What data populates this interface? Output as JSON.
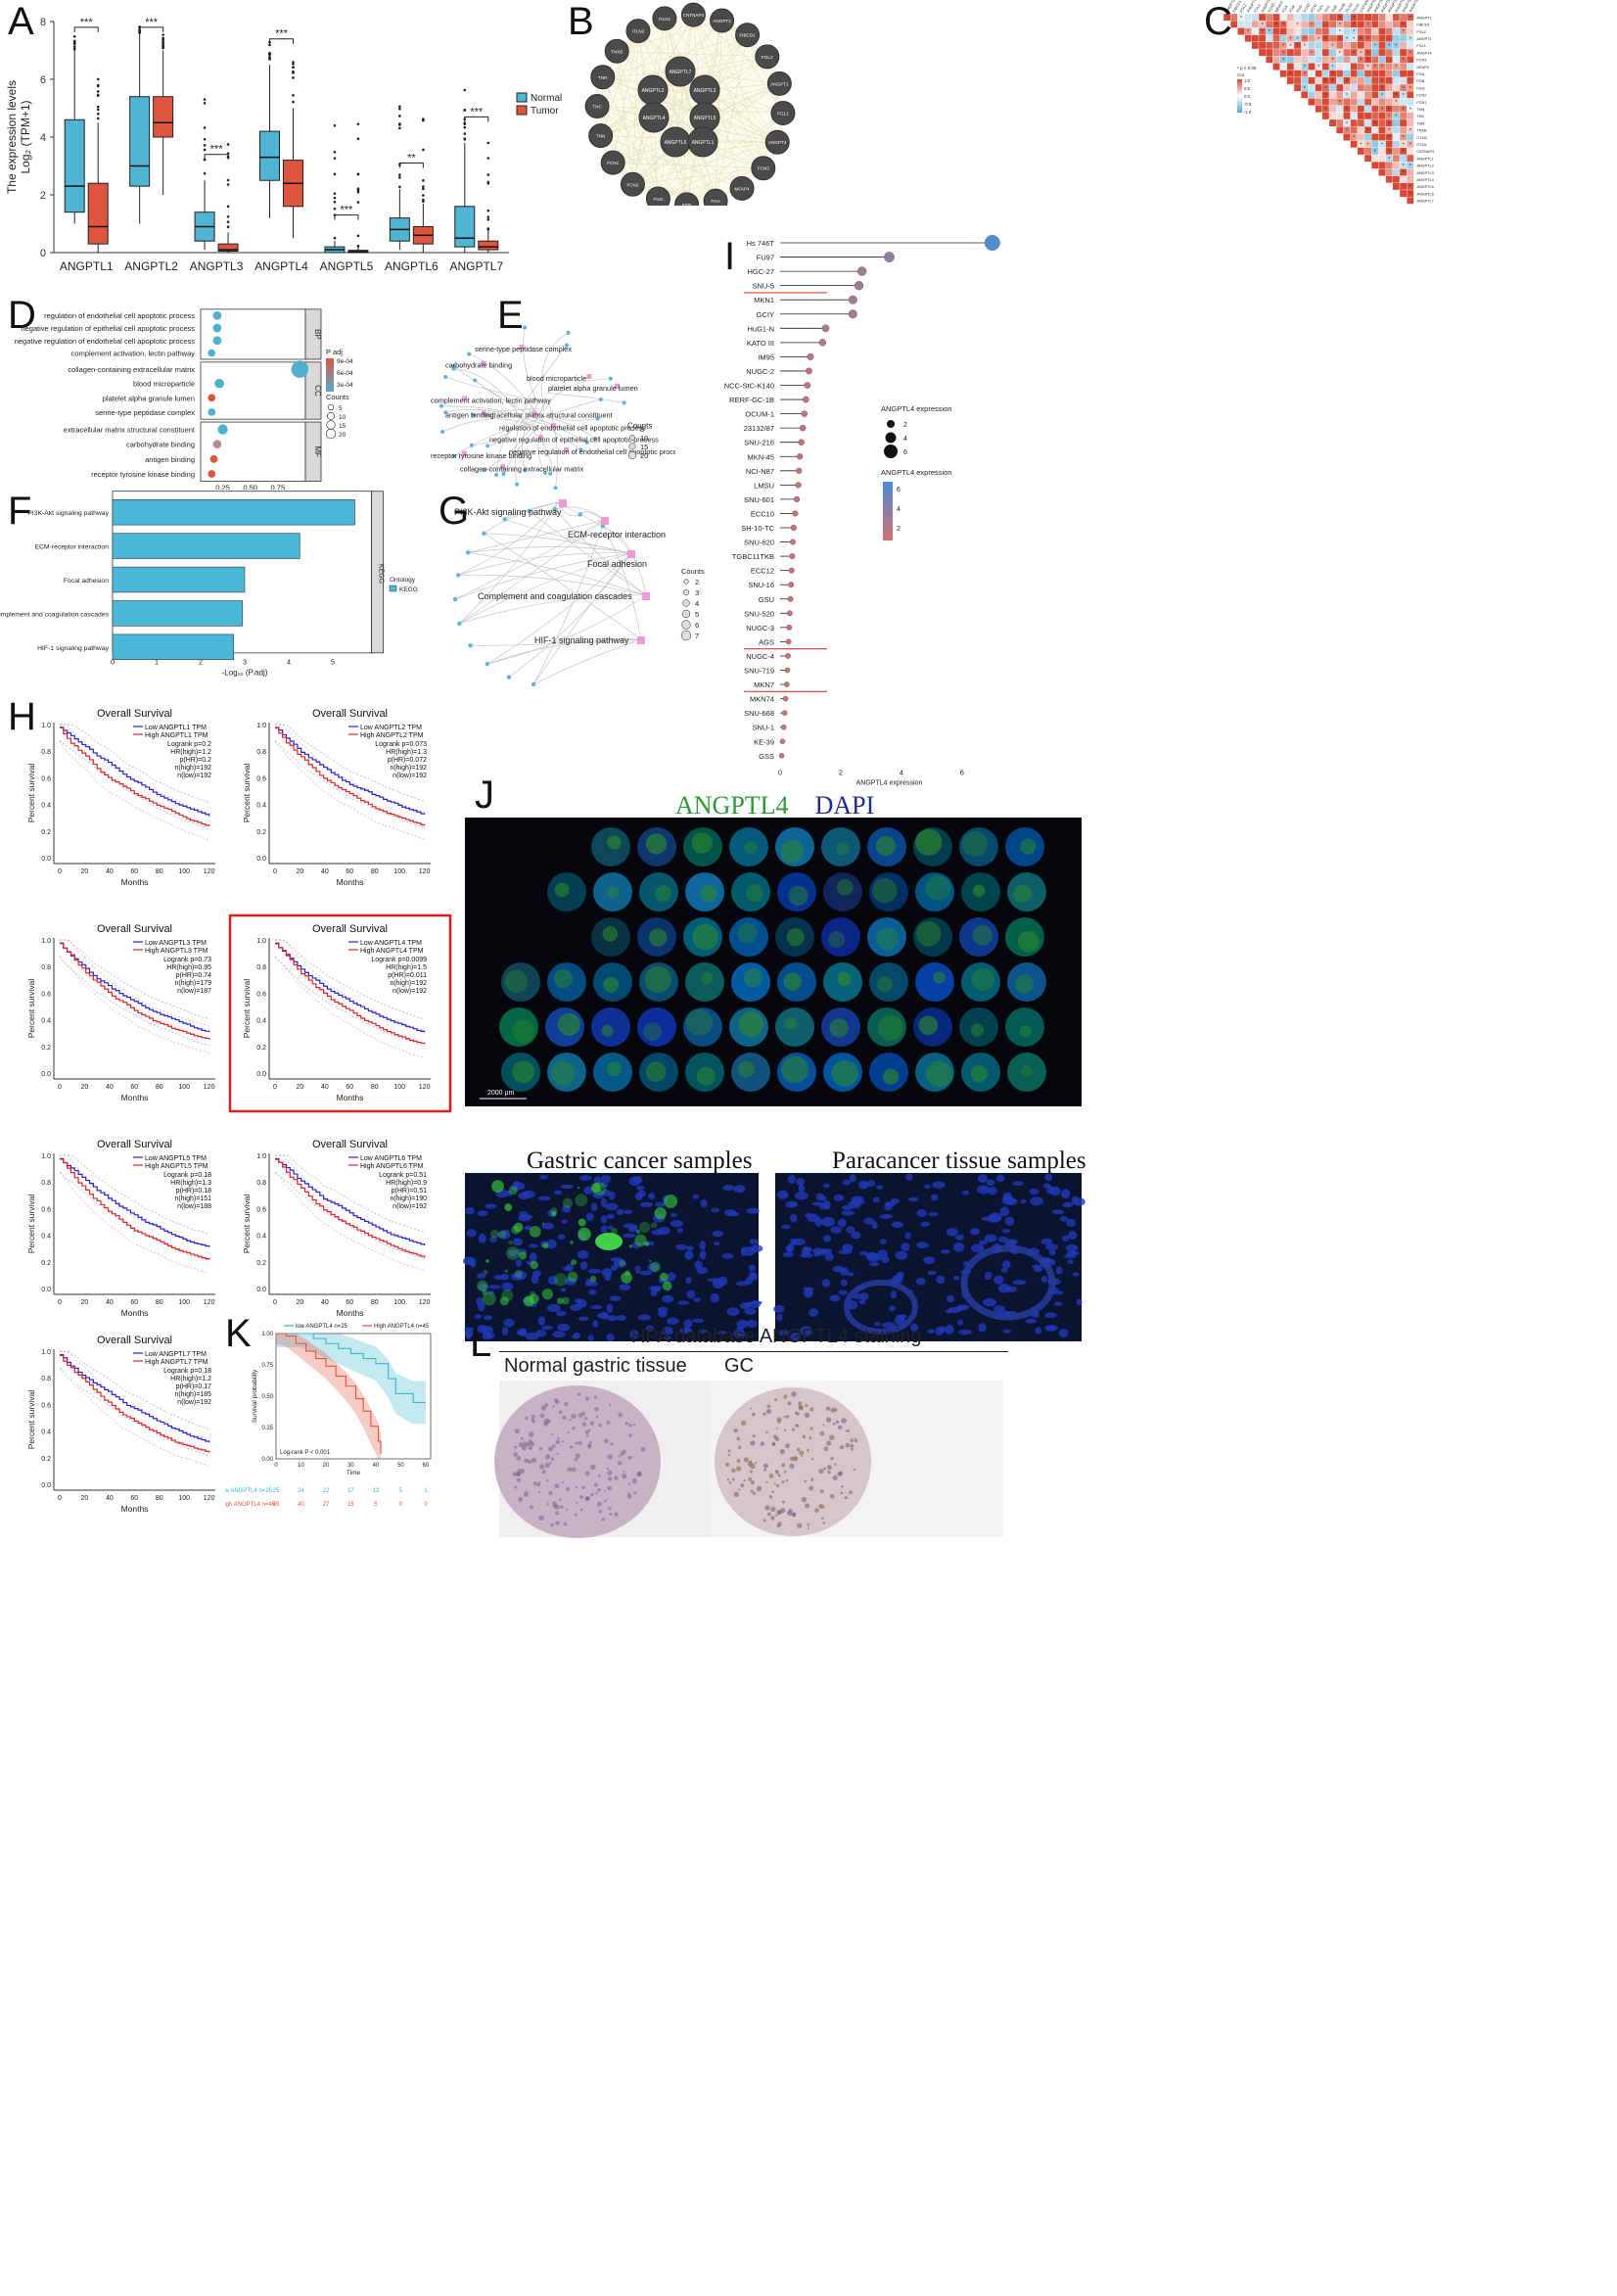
{
  "panel_letters": {
    "A": "A",
    "B": "B",
    "C": "C",
    "D": "D",
    "E": "E",
    "F": "F",
    "G": "G",
    "H": "H",
    "I": "I",
    "J": "J",
    "K": "K",
    "L": "L"
  },
  "panel_a": {
    "ylabel_line1": "The expression levels",
    "ylabel_line2": "Log₂ (TPM+1)",
    "legend": [
      "Normal",
      "Tumor"
    ],
    "colors": {
      "normal": "#4fb5d3",
      "tumor": "#e0553f"
    },
    "ylim": [
      0,
      8
    ],
    "yticks": [
      0,
      2,
      4,
      6,
      8
    ],
    "genes": [
      "ANGPTL1",
      "ANGPTL2",
      "ANGPTL3",
      "ANGPTL4",
      "ANGPTL5",
      "ANGPTL6",
      "ANGPTL7"
    ],
    "significance": [
      "***",
      "***",
      "***",
      "***",
      "***",
      "**",
      "***"
    ],
    "normal_boxes": [
      [
        1.0,
        1.4,
        2.3,
        4.6,
        7.0
      ],
      [
        1.0,
        2.3,
        3.0,
        5.4,
        7.6
      ],
      [
        0.1,
        0.4,
        0.9,
        1.4,
        2.5
      ],
      [
        1.2,
        2.5,
        3.3,
        4.2,
        6.5
      ],
      [
        0.0,
        0.0,
        0.1,
        0.2,
        0.4
      ],
      [
        0.1,
        0.4,
        0.8,
        1.2,
        2.2
      ],
      [
        0.0,
        0.2,
        0.5,
        1.6,
        3.8
      ]
    ],
    "tumor_boxes": [
      [
        0.0,
        0.3,
        0.9,
        2.4,
        4.5
      ],
      [
        2.0,
        4.0,
        4.5,
        5.4,
        7.0
      ],
      [
        0.0,
        0.05,
        0.1,
        0.3,
        0.7
      ],
      [
        0.5,
        1.6,
        2.4,
        3.2,
        5.0
      ],
      [
        0.0,
        0.0,
        0.03,
        0.08,
        0.2
      ],
      [
        0.0,
        0.3,
        0.6,
        0.9,
        1.7
      ],
      [
        0.0,
        0.1,
        0.2,
        0.4,
        0.8
      ]
    ]
  },
  "panel_b": {
    "center_nodes": [
      "ANGPTL7",
      "ANGPTL2",
      "ANGPTL3",
      "ANGPTL4",
      "ANGPTL5",
      "ANGPTL6",
      "ANGPTL1"
    ],
    "outer_nodes": [
      "ANGPT2",
      "FIBCD1",
      "FGL2",
      "ANGPT1",
      "FGL1",
      "ANGPT4",
      "FCN3",
      "MFAP4",
      "FGA",
      "FGB",
      "FGG",
      "FCN2",
      "FCN1",
      "TNN",
      "TNC",
      "TNR",
      "TNXB",
      "ITLN2",
      "ITLN1",
      "CNTNAP4"
    ]
  },
  "panel_c": {
    "labels": [
      "ANGPT2",
      "FIBCD1",
      "FGL2",
      "ANGPT1",
      "FGL1",
      "ANGPT4",
      "FCN3",
      "MFAP4",
      "FGA",
      "FGB",
      "FGG",
      "FCN2",
      "FCN1",
      "TNN",
      "TNC",
      "TNR",
      "TNXB",
      "ITLN2",
      "ITLN1",
      "CNTNAP4",
      "ANGPTL1",
      "ANGPTL2",
      "ANGPTL3",
      "ANGPTL4",
      "ANGPTL5",
      "ANGPTL6",
      "ANGPTL7"
    ],
    "legend_title": "Cor",
    "legend_note": "* p < 0.05",
    "legend_ticks": [
      "1.0",
      "0.5",
      "0.0",
      "-0.5",
      "-1.0"
    ]
  },
  "panel_d": {
    "xlabel": "GeneRatio",
    "xticks": [
      "0.25",
      "0.50",
      "0.75"
    ],
    "terms": [
      {
        "label": "regulation of endothelial cell apoptotic process",
        "x": 0.2,
        "count": 3,
        "padj": 0.0002,
        "group": "BP"
      },
      {
        "label": "negative regulation of epithelial cell apoptotic process",
        "x": 0.2,
        "count": 3,
        "padj": 0.0002,
        "group": "BP"
      },
      {
        "label": "negative regulation of endothelial cell apoptotic process",
        "x": 0.2,
        "count": 3,
        "padj": 0.0002,
        "group": "BP"
      },
      {
        "label": "complement activation, lectin pathway",
        "x": 0.15,
        "count": 2,
        "padj": 0.0002,
        "group": "BP"
      },
      {
        "label": "collagen-containing extracellular matrix",
        "x": 0.95,
        "count": 20,
        "padj": 0.0002,
        "group": "CC"
      },
      {
        "label": "blood microparticle",
        "x": 0.22,
        "count": 4,
        "padj": 0.0002,
        "group": "CC"
      },
      {
        "label": "platelet alpha granule lumen",
        "x": 0.15,
        "count": 2,
        "padj": 0.0009,
        "group": "CC"
      },
      {
        "label": "serine-type peptidase complex",
        "x": 0.15,
        "count": 2,
        "padj": 0.0002,
        "group": "CC"
      },
      {
        "label": "extracellular matrix structural constituent",
        "x": 0.25,
        "count": 5,
        "padj": 0.0002,
        "group": "MF"
      },
      {
        "label": "carbohydrate binding",
        "x": 0.2,
        "count": 3,
        "padj": 0.0006,
        "group": "MF"
      },
      {
        "label": "antigen binding",
        "x": 0.17,
        "count": 2,
        "padj": 0.0009,
        "group": "MF"
      },
      {
        "label": "receptor tyrosine kinase binding",
        "x": 0.15,
        "count": 2,
        "padj": 0.0009,
        "group": "MF"
      }
    ],
    "facets": [
      "BP",
      "CC",
      "MF"
    ],
    "padj_title": "P adj",
    "padj_ticks": [
      "9e-04",
      "6e-04",
      "3e-04"
    ],
    "counts_title": "Counts",
    "counts_ticks": [
      "5",
      "10",
      "15",
      "20"
    ]
  },
  "panel_e": {
    "terms": [
      "serine-type peptidase complex",
      "carbohydrate binding",
      "blood microparticle",
      "complement activation, lectin pathway",
      "platelet alpha granule lumen",
      "antigen binding",
      "extracellular matrix structural constituent",
      "regulation of endothelial cell apoptotic process",
      "negative regulation of epithelial cell apoptotic process",
      "receptor tyrosine kinase binding",
      "negative regulation of endothelial cell apoptotic process",
      "collagen-containing extracellular matrix"
    ],
    "counts_title": "Counts",
    "counts_ticks": [
      "5",
      "10",
      "15",
      "20"
    ]
  },
  "panel_f": {
    "pathways": [
      "PI3K-Akt signaling pathway",
      "ECM-receptor interaction",
      "Focal adhesion",
      "Complement and coagulation cascades",
      "HIF-1 signaling pathway"
    ],
    "values": [
      5.5,
      4.25,
      3.0,
      2.95,
      2.75
    ],
    "xticks": [
      "0",
      "1",
      "2",
      "3",
      "4",
      "5"
    ],
    "xlabel": "-Log₁₀ (P.adj)",
    "facet": "KEGG",
    "legend_title": "Ontology",
    "legend_item": "KEGG",
    "color": "#4ab8d8"
  },
  "panel_g": {
    "terms": [
      "PI3K-Akt signaling pathway",
      "ECM-receptor interaction",
      "Focal adhesion",
      "Complement and coagulation cascades",
      "HIF-1 signaling pathway"
    ],
    "counts_title": "Counts",
    "counts_ticks": [
      "2",
      "3",
      "4",
      "5",
      "6",
      "7"
    ]
  },
  "panel_h": {
    "title": "Overall Survival",
    "ylabel": "Percent survival",
    "xlabel": "Months",
    "xticks": [
      "0",
      "20",
      "40",
      "60",
      "80",
      "100",
      "120"
    ],
    "yticks": [
      "0.0",
      "0.2",
      "0.4",
      "0.6",
      "0.8",
      "1.0"
    ],
    "plots": [
      {
        "low": "Low ANGPTL1 TPM",
        "high": "High ANGPTL1 TPM",
        "stats": [
          "Logrank p=0.2",
          "HR(high)=1.2",
          "p(HR)=0.2",
          "n(high)=192",
          "n(low)=192"
        ]
      },
      {
        "low": "Low ANGPTL2 TPM",
        "high": "High ANGPTL2 TPM",
        "stats": [
          "Logrank p=0.073",
          "HR(high)=1.3",
          "p(HR)=0.072",
          "n(high)=192",
          "n(low)=192"
        ]
      },
      {
        "low": "Low ANGPTL3 TPM",
        "high": "High ANGPTL3 TPM",
        "stats": [
          "Logrank p=0.73",
          "HR(high)=0.95",
          "p(HR)=0.74",
          "n(high)=179",
          "n(low)=187"
        ]
      },
      {
        "low": "Low ANGPTL4 TPM",
        "high": "High ANGPTL4 TPM",
        "stats": [
          "Logrank p=0.0099",
          "HR(high)=1.5",
          "p(HR)=0.011",
          "n(high)=192",
          "n(low)=192"
        ]
      },
      {
        "low": "Low ANGPTL5 TPM",
        "high": "High ANGPTL5 TPM",
        "stats": [
          "Logrank p=0.18",
          "HR(high)=1.3",
          "p(HR)=0.18",
          "n(high)=151",
          "n(low)=188"
        ]
      },
      {
        "low": "Low ANGPTL6 TPM",
        "high": "High ANGPTL6 TPM",
        "stats": [
          "Logrank p=0.51",
          "HR(high)=0.9",
          "p(HR)=0.51",
          "n(high)=190",
          "n(low)=192"
        ]
      },
      {
        "low": "Low ANGPTL7 TPM",
        "high": "High ANGPTL7 TPM",
        "stats": [
          "Logrank p=0.18",
          "HR(high)=1.2",
          "p(HR)=0.17",
          "n(high)=185",
          "n(low)=192"
        ]
      }
    ]
  },
  "panel_i": {
    "cell_lines": [
      "Hs 746T",
      "FU97",
      "HGC-27",
      "SNU-5",
      "MKN1",
      "GCIY",
      "HuG1-N",
      "KATO III",
      "IM95",
      "NUGC-2",
      "NCC-StC-K140",
      "RERF-GC-1B",
      "OCUM-1",
      "23132/87",
      "SNU-216",
      "MKN-45",
      "NCI-N87",
      "LMSU",
      "SNU-601",
      "ECC10",
      "SH-10-TC",
      "SNU-620",
      "TGBC11TKB",
      "ECC12",
      "SNU-16",
      "GSU",
      "SNU-520",
      "NUGC-3",
      "AGS",
      "NUGC-4",
      "SNU-719",
      "MKN7",
      "MKN74",
      "SNU-668",
      "SNU-1",
      "KE-39",
      "GSS"
    ],
    "values": [
      7.0,
      3.6,
      2.7,
      2.6,
      2.4,
      2.4,
      1.5,
      1.4,
      1.0,
      0.95,
      0.9,
      0.85,
      0.8,
      0.75,
      0.7,
      0.65,
      0.62,
      0.6,
      0.55,
      0.5,
      0.45,
      0.42,
      0.4,
      0.38,
      0.36,
      0.34,
      0.32,
      0.3,
      0.28,
      0.26,
      0.24,
      0.22,
      0.18,
      0.15,
      0.12,
      0.08,
      0.05
    ],
    "xticks": [
      "0",
      "2",
      "4",
      "6"
    ],
    "xlabel": "ANGPTL4 expression",
    "size_legend_title": "ANGPTL4 expression",
    "size_ticks": [
      "2",
      "4",
      "6"
    ],
    "color_legend_title": "ANGPTL4 expression",
    "color_ticks": [
      "6",
      "4",
      "2"
    ]
  },
  "panel_j": {
    "title_green": "ANGPTL4",
    "title_blue": "DAPI",
    "scale": "2000 μm",
    "sub_left": "Gastric cancer samples",
    "sub_right": "Paracancer tissue samples"
  },
  "panel_k": {
    "legend_low": "low ANGPTL4 n=25",
    "legend_high": "High ANGPTL4 n=45",
    "ylabel": "Survival probability",
    "xlabel": "Time",
    "stat": "Log-rank  P < 0.001",
    "xticks": [
      "0",
      "10",
      "20",
      "30",
      "40",
      "50",
      "60"
    ],
    "yticks": [
      "0.00",
      "0.25",
      "0.50",
      "0.75",
      "1.00"
    ],
    "risk_low_label": "low ANGPTL4 n=25",
    "risk_high_label": "High ANGPTL4 n=45",
    "risk_low": [
      "25",
      "24",
      "22",
      "17",
      "13",
      "5",
      "1"
    ],
    "risk_high": [
      "45",
      "40",
      "27",
      "15",
      "5",
      "0",
      "0"
    ],
    "colors": {
      "low": "#3bb6cf",
      "high": "#e0553f"
    }
  },
  "panel_l": {
    "title": "HPA database ANGPTL4 staining",
    "left": "Normal gastric tissue",
    "right": "GC"
  }
}
